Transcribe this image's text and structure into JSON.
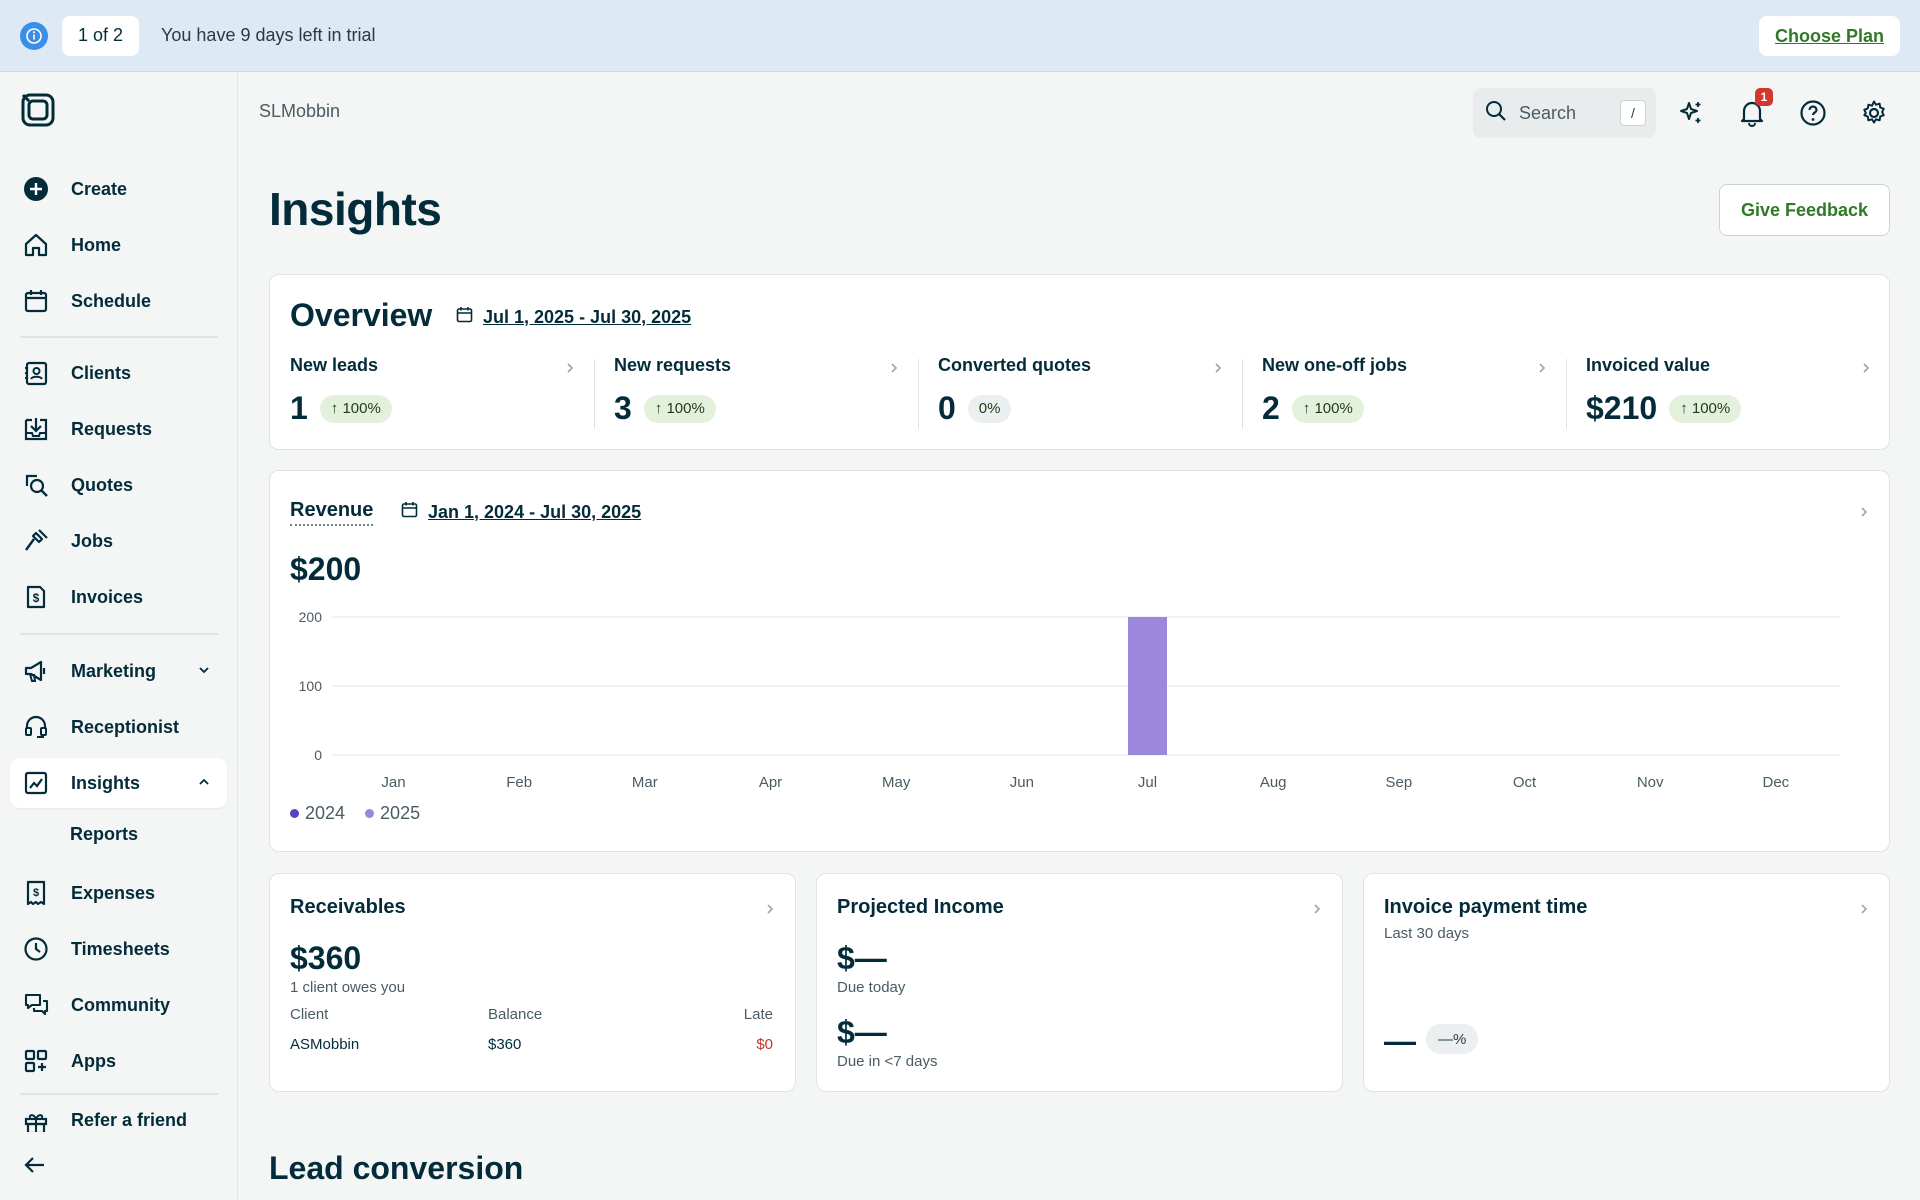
{
  "banner": {
    "counter": "1 of 2",
    "message": "You have 9 days left in trial",
    "cta": "Choose Plan"
  },
  "sidebar": {
    "items": [
      {
        "label": "Create",
        "icon": "plus-circle-icon"
      },
      {
        "label": "Home",
        "icon": "home-icon"
      },
      {
        "label": "Schedule",
        "icon": "calendar-icon"
      },
      {
        "label": "Clients",
        "icon": "clients-icon"
      },
      {
        "label": "Requests",
        "icon": "inbox-download-icon"
      },
      {
        "label": "Quotes",
        "icon": "quote-search-icon"
      },
      {
        "label": "Jobs",
        "icon": "hammer-icon"
      },
      {
        "label": "Invoices",
        "icon": "invoice-dollar-icon"
      },
      {
        "label": "Marketing",
        "icon": "megaphone-icon"
      },
      {
        "label": "Receptionist",
        "icon": "headset-icon"
      },
      {
        "label": "Insights",
        "icon": "chart-line-icon"
      },
      {
        "label": "Expenses",
        "icon": "receipt-dollar-icon"
      },
      {
        "label": "Timesheets",
        "icon": "clock-icon"
      },
      {
        "label": "Community",
        "icon": "chat-bubbles-icon"
      },
      {
        "label": "Apps",
        "icon": "apps-grid-icon"
      },
      {
        "label": "Refer a friend",
        "icon": "gift-icon"
      }
    ],
    "insights_sub": "Reports",
    "active": "Insights"
  },
  "header": {
    "breadcrumb": "SLMobbin",
    "search_placeholder": "Search",
    "search_shortcut": "/",
    "notification_count": "1"
  },
  "page": {
    "title": "Insights",
    "feedback_button": "Give Feedback"
  },
  "overview": {
    "title": "Overview",
    "date_range": "Jul 1, 2025 - Jul 30, 2025",
    "metrics": [
      {
        "label": "New leads",
        "value": "1",
        "change": "↑ 100%"
      },
      {
        "label": "New requests",
        "value": "3",
        "change": "↑ 100%"
      },
      {
        "label": "Converted quotes",
        "value": "0",
        "change": "0%"
      },
      {
        "label": "New one-off jobs",
        "value": "2",
        "change": "↑ 100%"
      },
      {
        "label": "Invoiced value",
        "value": "$210",
        "change": "↑ 100%"
      }
    ]
  },
  "revenue": {
    "title": "Revenue",
    "date_range": "Jan 1, 2024 - Jul 30, 2025",
    "total": "$200",
    "legend": [
      "2024",
      "2025"
    ]
  },
  "chart_data": {
    "type": "bar",
    "categories": [
      "Jan",
      "Feb",
      "Mar",
      "Apr",
      "May",
      "Jun",
      "Jul",
      "Aug",
      "Sep",
      "Oct",
      "Nov",
      "Dec"
    ],
    "series": [
      {
        "name": "2024",
        "values": [
          0,
          0,
          0,
          0,
          0,
          0,
          0,
          0,
          0,
          0,
          0,
          0
        ],
        "color": "#5b3fc4"
      },
      {
        "name": "2025",
        "values": [
          0,
          0,
          0,
          0,
          0,
          0,
          200,
          0,
          0,
          0,
          0,
          0
        ],
        "color": "#9b87dd"
      }
    ],
    "yticks": [
      0,
      100,
      200
    ],
    "ylim": [
      0,
      200
    ],
    "grid": true,
    "legend": "bottom-left"
  },
  "receivables": {
    "title": "Receivables",
    "total": "$360",
    "subtitle": "1 client owes you",
    "columns": [
      "Client",
      "Balance",
      "Late"
    ],
    "rows": [
      {
        "client": "ASMobbin",
        "balance": "$360",
        "late": "$0"
      }
    ]
  },
  "projected_income": {
    "title": "Projected Income",
    "today_value": "$—",
    "today_label": "Due today",
    "week_value": "$—",
    "week_label": "Due in <7 days"
  },
  "payment_time": {
    "title": "Invoice payment time",
    "subtitle": "Last 30 days",
    "value": "—",
    "change": "—%"
  },
  "lead_conversion": {
    "title": "Lead conversion"
  },
  "colors": {
    "brand_green": "#2f7a25",
    "primary_text": "#032b3a",
    "series_2024": "#5b3fc4",
    "series_2025": "#9b87dd",
    "alert_red": "#d3362c"
  }
}
